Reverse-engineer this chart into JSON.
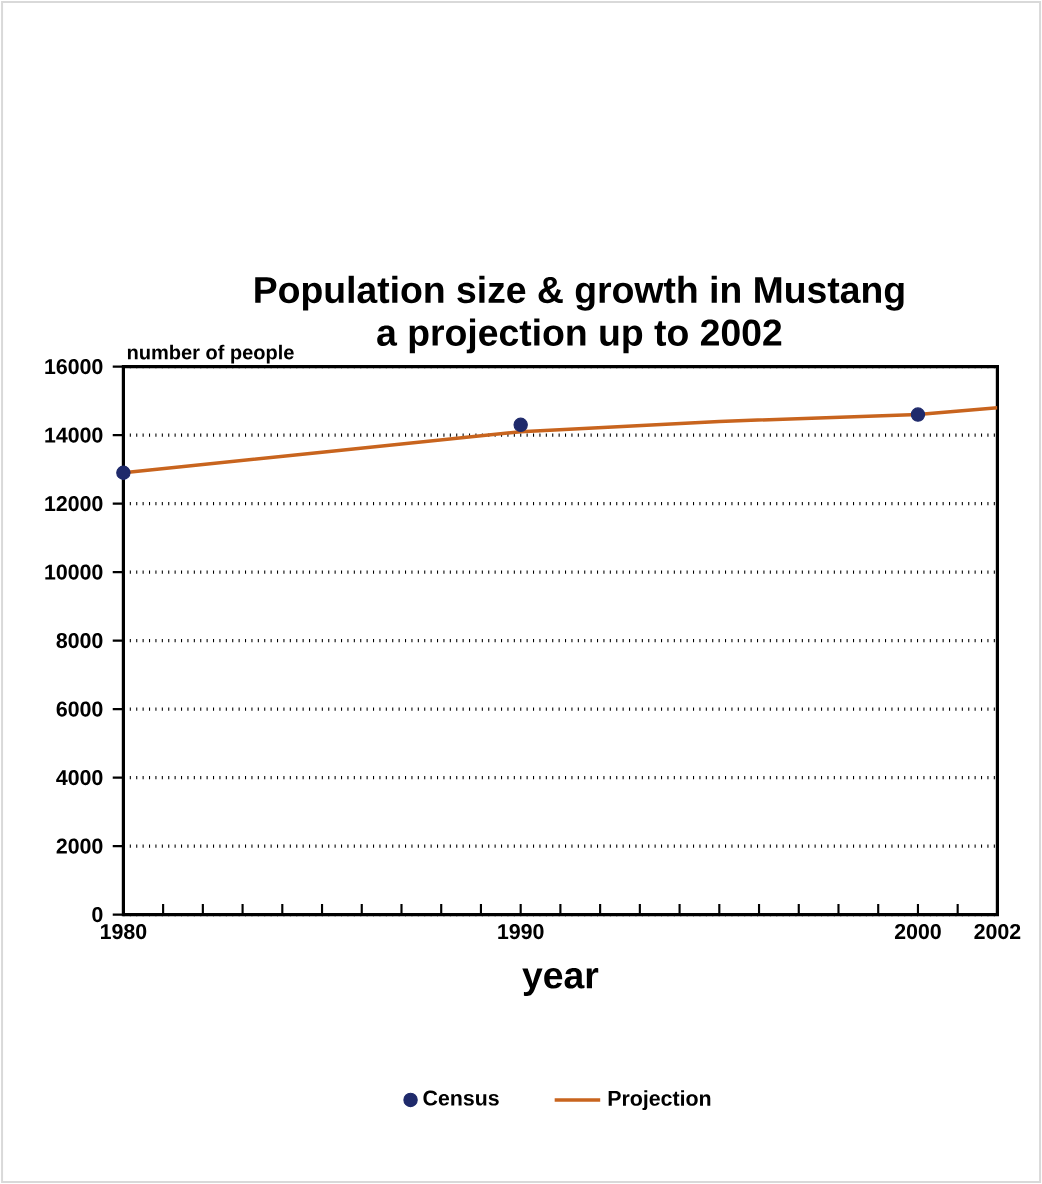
{
  "chart_data": {
    "type": "line",
    "title": "Population size & growth in Mustang",
    "subtitle": "a projection up to 2002",
    "xlabel": "year",
    "ylabel": "number of people",
    "xlim": [
      1980,
      2002
    ],
    "ylim": [
      0,
      16000
    ],
    "xticks": [
      1980,
      {
        "value": 1981,
        "label": null
      },
      {
        "value": 1982,
        "label": null
      },
      {
        "value": 1983,
        "label": null
      },
      {
        "value": 1984,
        "label": null
      },
      {
        "value": 1985,
        "label": null
      },
      {
        "value": 1986,
        "label": null
      },
      {
        "value": 1987,
        "label": null
      },
      {
        "value": 1988,
        "label": null
      },
      {
        "value": 1989,
        "label": null
      },
      1990,
      {
        "value": 1991,
        "label": null
      },
      {
        "value": 1992,
        "label": null
      },
      {
        "value": 1993,
        "label": null
      },
      {
        "value": 1994,
        "label": null
      },
      {
        "value": 1995,
        "label": null
      },
      {
        "value": 1996,
        "label": null
      },
      {
        "value": 1997,
        "label": null
      },
      {
        "value": 1998,
        "label": null
      },
      {
        "value": 1999,
        "label": null
      },
      2000,
      {
        "value": 2001,
        "label": null
      },
      2002
    ],
    "yticks": [
      0,
      2000,
      4000,
      6000,
      8000,
      10000,
      12000,
      14000,
      16000
    ],
    "grid": "y",
    "legend": "bottom",
    "series": [
      {
        "name": "Census",
        "type": "scatter",
        "marker": "circle",
        "color": "#1f2a6b",
        "x": [
          1980,
          1990,
          2000
        ],
        "values": [
          12900,
          14300,
          14600
        ]
      },
      {
        "name": "Projection",
        "marker": "none",
        "line_style": "solid",
        "color": "#c8641e",
        "x": [
          1980,
          1985,
          1990,
          1995,
          2000,
          2002
        ],
        "values": [
          12900,
          13500,
          14100,
          14400,
          14600,
          14800
        ]
      }
    ]
  }
}
